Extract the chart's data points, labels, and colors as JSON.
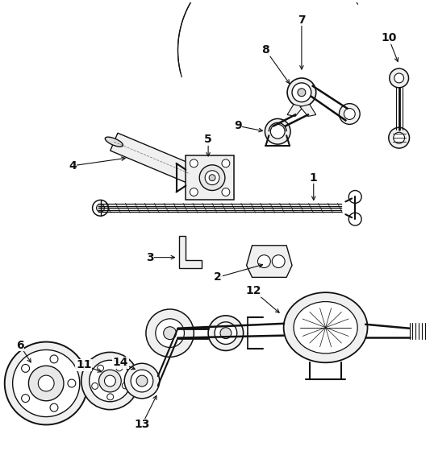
{
  "background_color": "#ffffff",
  "figure_width": 5.38,
  "figure_height": 5.7,
  "dpi": 100,
  "line_color": "#111111",
  "line_width": 1.0,
  "label_fontsize": 10,
  "label_fontweight": "bold"
}
